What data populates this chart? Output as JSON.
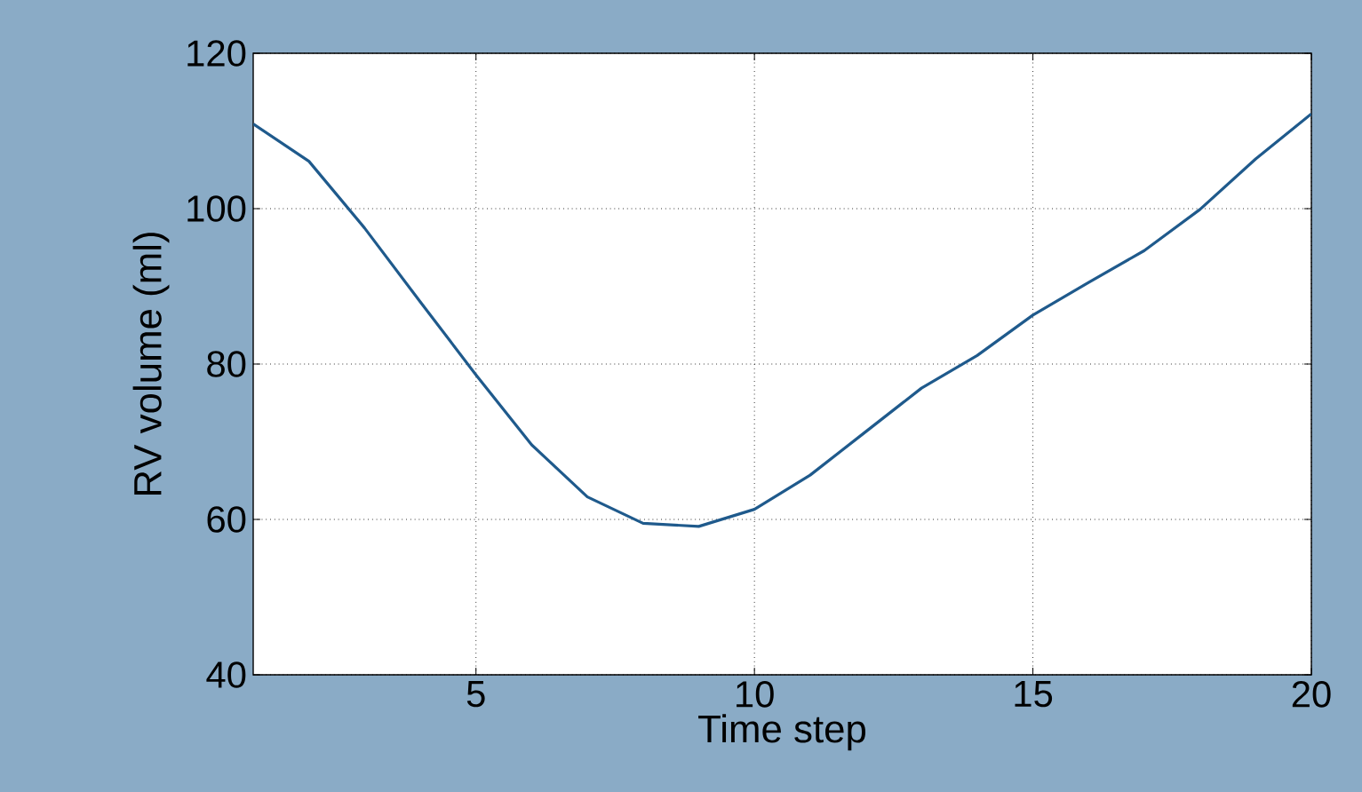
{
  "chart_data": {
    "type": "line",
    "xlabel": "Time step",
    "ylabel": "RV volume (ml)",
    "x": [
      1,
      2,
      3,
      4,
      5,
      6,
      7,
      8,
      9,
      10,
      11,
      12,
      13,
      14,
      15,
      16,
      17,
      18,
      19,
      20
    ],
    "values": [
      110.9,
      106.1,
      97.5,
      88,
      78.6,
      69.6,
      62.9,
      59.5,
      59.1,
      61.3,
      65.7,
      71.3,
      76.9,
      81.1,
      86.3,
      90.5,
      94.6,
      99.9,
      106.4,
      112.2
    ],
    "color": "#1f5a8c",
    "xlim": [
      1,
      20
    ],
    "ylim": [
      40,
      120
    ],
    "xticks": [
      5,
      10,
      15,
      20
    ],
    "yticks": [
      40,
      60,
      80,
      100,
      120
    ],
    "grid": true,
    "marker": "none",
    "line_style": "solid"
  }
}
